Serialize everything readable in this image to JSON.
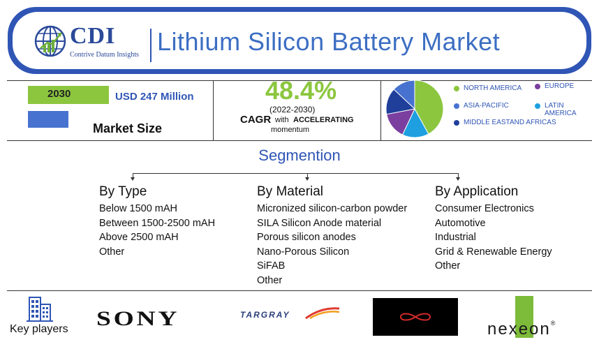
{
  "header": {
    "logo_name": "CDI",
    "logo_tagline": "Contrive Datum Insights",
    "title": "Lithium Silicon Battery Market"
  },
  "stats": {
    "year": "2030",
    "market_value": "USD 247 Million",
    "market_size_label": "Market Size",
    "cagr_value": "48.4%",
    "cagr_period": "(2022-2030)",
    "cagr_label": "CAGR",
    "cagr_with": "with",
    "cagr_accelerating": "ACCELERATING",
    "cagr_momentum": "momentum"
  },
  "regions": {
    "legend": [
      {
        "label": "NORTH AMERICA",
        "color": "#8cc63f"
      },
      {
        "label": "EUROPE",
        "color": "#7b3fa0"
      },
      {
        "label": "ASIA-PACIFIC",
        "color": "#4772d0"
      },
      {
        "label": "LATIN AMERICA",
        "color": "#1ea0e0"
      },
      {
        "label": "MIDDLE EASTAND AFRICAS",
        "color": "#1f3f9a"
      }
    ],
    "shares": [
      0.42,
      0.15,
      0.13,
      0.15,
      0.15
    ]
  },
  "segmentation": {
    "title": "Segmention",
    "columns": [
      {
        "heading": "By Type",
        "items": [
          "Below 1500 mAH",
          "Between 1500-2500 mAH",
          "Above 2500 mAH",
          "Other"
        ]
      },
      {
        "heading": "By Material",
        "items": [
          "Micronized silicon-carbon powder",
          "SILA Silicon Anode material",
          "Porous silicon anodes",
          "Nano-Porous Silicon",
          "SiFAB",
          "Other"
        ]
      },
      {
        "heading": "By Application",
        "items": [
          "Consumer Electronics",
          "Automotive",
          "Industrial",
          "Grid & Renewable Energy",
          "Other"
        ]
      }
    ]
  },
  "key_players": {
    "label": "Key players",
    "logos": [
      "SONY",
      "TARGRAY",
      "nexeon"
    ]
  }
}
